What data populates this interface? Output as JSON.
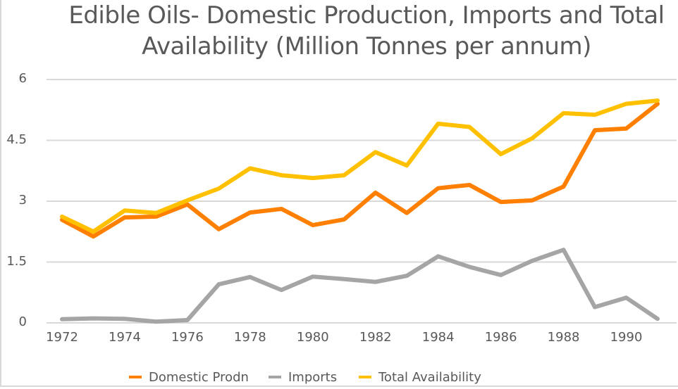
{
  "chart_data": {
    "type": "line",
    "title": "Edible Oils- Domestic Production, Imports and Total Availability (Million Tonnes per annum)",
    "title_lines": [
      "Edible Oils- Domestic Production, Imports and Total",
      "Availability (Million Tonnes per annum)"
    ],
    "xlabel": "",
    "ylabel": "",
    "x": [
      1972,
      1973,
      1974,
      1975,
      1976,
      1977,
      1978,
      1979,
      1980,
      1981,
      1982,
      1983,
      1984,
      1985,
      1986,
      1987,
      1988,
      1989,
      1990,
      1991
    ],
    "x_tick_labels": [
      "1972",
      "1974",
      "1976",
      "1978",
      "1980",
      "1982",
      "1984",
      "1986",
      "1988",
      "1990"
    ],
    "y_tick_labels": [
      "0",
      "1.5",
      "3",
      "4.5",
      "6"
    ],
    "y_ticks": [
      0,
      1.5,
      3,
      4.5,
      6
    ],
    "ylim": [
      0,
      6
    ],
    "grid": true,
    "legend_position": "bottom",
    "series": [
      {
        "name": "Domestic Prodn",
        "color": "#ff7f00",
        "values": [
          2.54,
          2.13,
          2.6,
          2.62,
          2.92,
          2.31,
          2.72,
          2.81,
          2.41,
          2.55,
          3.21,
          2.71,
          3.32,
          3.4,
          2.98,
          3.02,
          3.36,
          4.75,
          4.79,
          5.4
        ]
      },
      {
        "name": "Imports",
        "color": "#a5a5a5",
        "values": [
          0.09,
          0.11,
          0.1,
          0.03,
          0.07,
          0.95,
          1.13,
          0.81,
          1.14,
          1.08,
          1.01,
          1.16,
          1.64,
          1.38,
          1.18,
          1.53,
          1.8,
          0.39,
          0.62,
          0.1
        ]
      },
      {
        "name": "Total Availability",
        "color": "#ffc000",
        "values": [
          2.62,
          2.25,
          2.77,
          2.71,
          3.02,
          3.31,
          3.81,
          3.64,
          3.57,
          3.64,
          4.21,
          3.88,
          4.91,
          4.83,
          4.16,
          4.55,
          5.17,
          5.13,
          5.4,
          5.48
        ]
      }
    ]
  }
}
